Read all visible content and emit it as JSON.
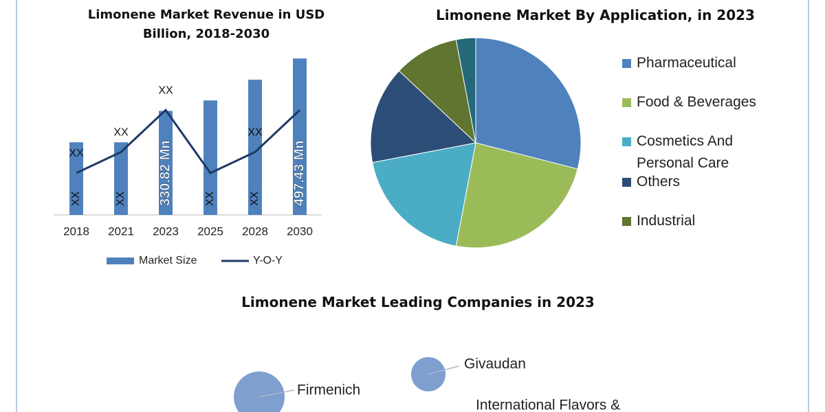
{
  "chart_data": [
    {
      "type": "bar_line",
      "title": "Limonene Market Revenue in USD Billion, 2018-2030",
      "categories": [
        "2018",
        "2021",
        "2023",
        "2025",
        "2028",
        "2030"
      ],
      "ylim": [
        0,
        500
      ],
      "y2lim": [
        0,
        30
      ],
      "series": [
        {
          "name": "Market Size",
          "type": "bar",
          "color": "#4f81bd",
          "values": [
            231,
            231,
            330.82,
            364,
            430,
            497.43
          ],
          "value_labels": [
            "XX",
            "XX",
            "330.82 Mn",
            "XX",
            "XX",
            "497.43 Mn"
          ]
        },
        {
          "name": "Y-O-Y",
          "type": "line",
          "axis": "y2",
          "color": "#1f3864",
          "values": [
            8,
            12,
            20,
            8,
            12,
            20
          ],
          "value_labels": [
            "XX",
            "XX",
            "XX",
            null,
            "XX",
            null
          ]
        }
      ]
    },
    {
      "type": "pie",
      "title": "Limonene Market By Application, in 2023",
      "categories": [
        "Pharmaceutical",
        "Food & Beverages",
        "Cosmetics And Personal Care",
        "Others",
        "Industrial",
        null
      ],
      "values": [
        29,
        24,
        19,
        15,
        10,
        3
      ],
      "colors": [
        "#4f81bd",
        "#9bbb59",
        "#4bacc6",
        "#2c4d75",
        "#5f7530",
        "#24687a"
      ]
    },
    {
      "type": "bubble",
      "title": "Limonene Market Leading Companies in 2023",
      "categories": [
        "Firmenich",
        "Givaudan",
        "International Flavors &"
      ],
      "sizes": [
        37,
        25,
        null
      ],
      "color": "#7f9fcf"
    }
  ]
}
